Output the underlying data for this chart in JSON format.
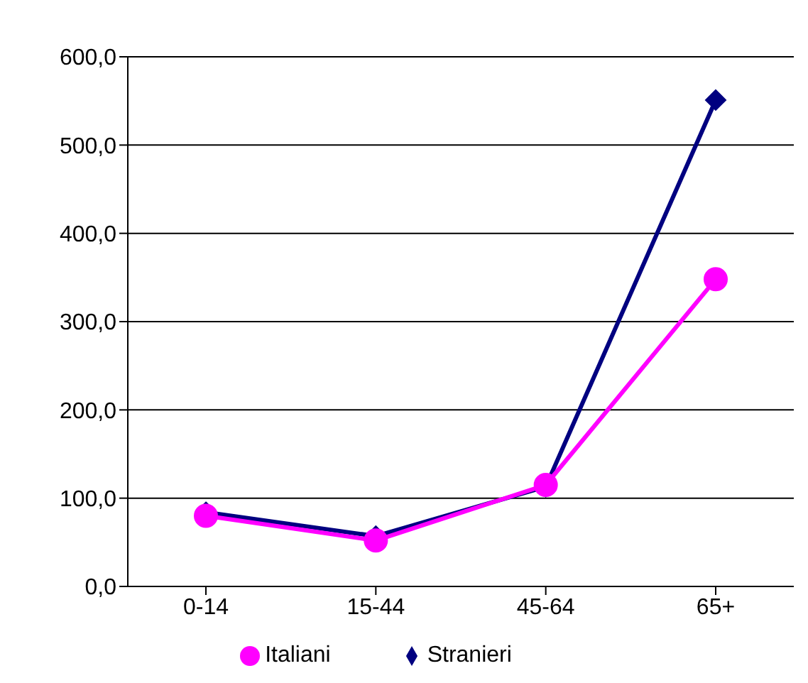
{
  "chart_data": {
    "type": "line",
    "categories": [
      "0-14",
      "15-44",
      "45-64",
      "65+"
    ],
    "series": [
      {
        "name": "Stranieri",
        "color": "#000080",
        "marker": "diamond",
        "values": [
          84,
          57,
          113,
          551
        ]
      },
      {
        "name": "Italiani",
        "color": "#ff00ff",
        "marker": "circle",
        "values": [
          80,
          52,
          115,
          348
        ]
      }
    ],
    "ylim": [
      0,
      600
    ],
    "yticks": [
      {
        "value": 0,
        "label": "0,0"
      },
      {
        "value": 100,
        "label": "100,0"
      },
      {
        "value": 200,
        "label": "200,0"
      },
      {
        "value": 300,
        "label": "300,0"
      },
      {
        "value": 400,
        "label": "400,0"
      },
      {
        "value": 500,
        "label": "500,0"
      },
      {
        "value": 600,
        "label": "600,0"
      }
    ],
    "grid": "y",
    "legend": "bottom"
  }
}
